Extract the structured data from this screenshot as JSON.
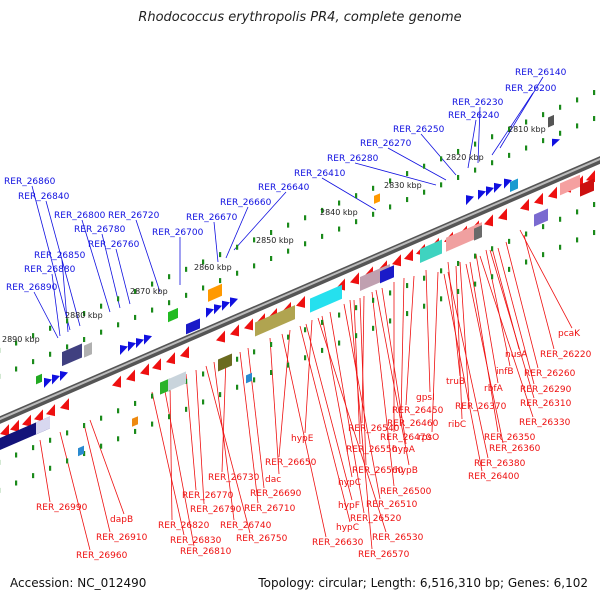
{
  "title": "Rhodococcus erythropolis PR4, complete genome",
  "footer": {
    "accession": "Accession: NC_012490",
    "topology": "Topology: circular; Length: 6,516,310 bp; Genes: 6,102"
  },
  "colors": {
    "plus_strand": "#1010e0",
    "minus_strand": "#ee1010",
    "tick": "#1a8a1a",
    "backbone": "#777777"
  },
  "ruler_labels": [
    "2810 kbp",
    "2820 kbp",
    "2830 kbp",
    "2840 kbp",
    "2850 kbp",
    "2860 kbp",
    "2870 kbp",
    "2880 kbp",
    "2890 kbp"
  ],
  "plus_labels": [
    "RER_26140",
    "RER_26200",
    "RER_26230",
    "RER_26240",
    "RER_26250",
    "RER_26270",
    "RER_26280",
    "RER_26410",
    "RER_26640",
    "RER_26660",
    "RER_26670",
    "RER_26700",
    "RER_26720",
    "RER_26800",
    "RER_26760",
    "RER_26780",
    "RER_26860",
    "RER_26840",
    "RER_26850",
    "RER_26880",
    "RER_26890"
  ],
  "minus_labels": [
    "pcaK",
    "RER_26220",
    "nusA",
    "RER_26260",
    "infB",
    "RER_26290",
    "rbfA",
    "RER_26310",
    "truB",
    "RER_26370",
    "RER_26330",
    "gpsI",
    "ribC",
    "RER_26350",
    "RER_26450",
    "rpsO",
    "RER_26360",
    "RER_26460",
    "RER_26380",
    "RER_26470",
    "RER_26400",
    "hypA",
    "RER_26540",
    "hypB",
    "RER_26550",
    "RER_26560",
    "RER_26500",
    "hypE",
    "hypC",
    "RER_26510",
    "RER_26650",
    "hypF",
    "RER_26520",
    "RER_26530",
    "dac",
    "RER_26690",
    "RER_26710",
    "RER_26730",
    "RER_26770",
    "RER_26740",
    "RER_26790",
    "RER_26750",
    "RER_26820",
    "RER_26830",
    "RER_26810",
    "hypC",
    "RER_26630",
    "RER_26570",
    "RER_26990",
    "dapB",
    "RER_26910",
    "RER_26960"
  ]
}
